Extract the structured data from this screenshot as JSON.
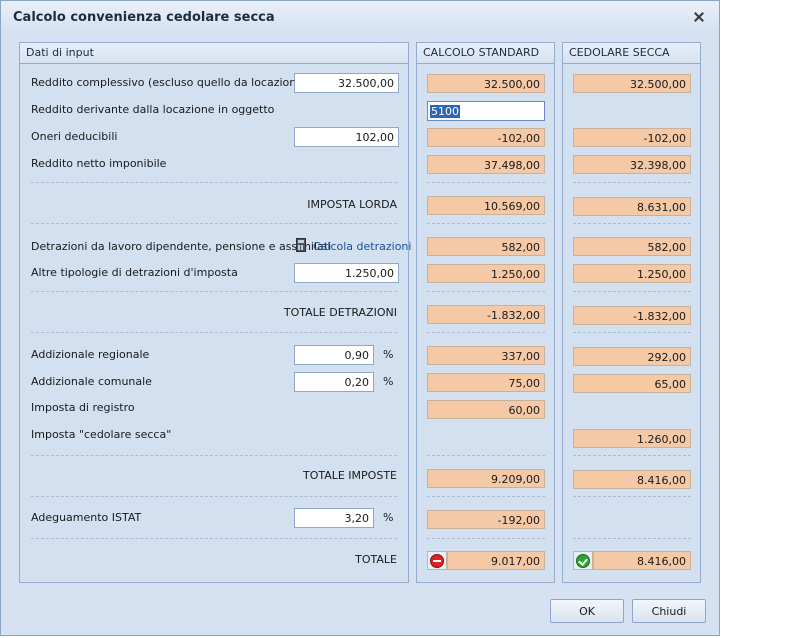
{
  "dialog": {
    "title": "Calcolo convenienza cedolare secca"
  },
  "panels": {
    "input_title": "Dati di input",
    "standard_title": "CALCOLO STANDARD",
    "cedolare_title": "CEDOLARE SECCA"
  },
  "rows": {
    "reddito_complessivo": {
      "label": "Reddito complessivo (escluso quello da locazione)",
      "input": "32.500,00",
      "standard": "32.500,00",
      "cedolare": "32.500,00"
    },
    "reddito_locazione": {
      "label": "Reddito derivante dalla locazione in oggetto",
      "input": "5100"
    },
    "oneri": {
      "label": "Oneri deducibili",
      "input": "102,00",
      "standard": "-102,00",
      "cedolare": "-102,00"
    },
    "netto": {
      "label": "Reddito netto imponibile",
      "standard": "37.498,00",
      "cedolare": "32.398,00"
    },
    "lorda": {
      "label": "IMPOSTA LORDA",
      "standard": "10.569,00",
      "cedolare": "8.631,00"
    },
    "detr_lavoro": {
      "label": "Detrazioni da lavoro dipendente, pensione e assimilati",
      "link": "Calcola detrazioni",
      "standard": "582,00",
      "cedolare": "582,00"
    },
    "altre_detr": {
      "label": "Altre tipologie di detrazioni d'imposta",
      "input": "1.250,00",
      "standard": "1.250,00",
      "cedolare": "1.250,00"
    },
    "tot_detr": {
      "label": "TOTALE DETRAZIONI",
      "standard": "-1.832,00",
      "cedolare": "-1.832,00"
    },
    "add_reg": {
      "label": "Addizionale regionale",
      "input": "0,90",
      "unit": "%",
      "standard": "337,00",
      "cedolare": "292,00"
    },
    "add_com": {
      "label": "Addizionale comunale",
      "input": "0,20",
      "unit": "%",
      "standard": "75,00",
      "cedolare": "65,00"
    },
    "registro": {
      "label": "Imposta di registro",
      "standard": "60,00"
    },
    "cedolare": {
      "label": "Imposta \"cedolare secca\"",
      "cedolare": "1.260,00"
    },
    "tot_imposte": {
      "label": "TOTALE IMPOSTE",
      "standard": "9.209,00",
      "cedolare": "8.416,00"
    },
    "istat": {
      "label": "Adeguamento ISTAT",
      "input": "3,20",
      "unit": "%",
      "standard": "-192,00"
    },
    "totale": {
      "label": "TOTALE",
      "standard": "9.017,00",
      "cedolare": "8.416,00"
    }
  },
  "buttons": {
    "ok": "OK",
    "close": "Chiudi"
  },
  "icons": {
    "close": "close-icon",
    "calculator": "calculator-icon",
    "stop": "stop-icon",
    "check": "check-icon"
  }
}
